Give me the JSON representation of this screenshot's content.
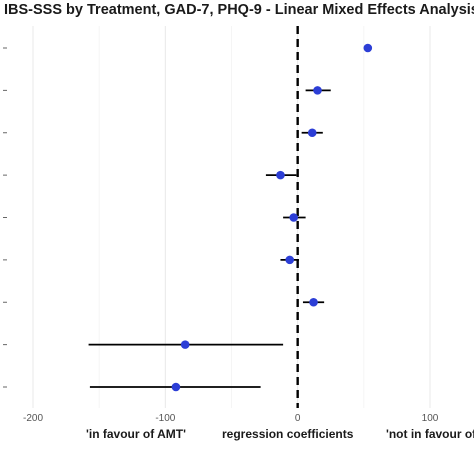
{
  "chart_data": {
    "type": "scatter",
    "title": "IBS-SSS by Treatment, GAD-7, PHQ-9 - Linear Mixed Effects Analysis",
    "xlabel_left": "'in favour of AMT'",
    "xlabel_center": "regression coefficients",
    "xlabel_right": "'not in favour of",
    "xlim": [
      -225,
      135
    ],
    "x_ticks": [
      -200,
      -100,
      0,
      100
    ],
    "x_tick_labels": [
      "-200",
      "-100",
      "0",
      "100"
    ],
    "reference_line_x": 0,
    "grid": true,
    "point_color": "#2c3ed6",
    "points": [
      {
        "estimate": 53,
        "lower": null,
        "upper": null
      },
      {
        "estimate": 15,
        "lower": 6,
        "upper": 25
      },
      {
        "estimate": 11,
        "lower": 3,
        "upper": 19
      },
      {
        "estimate": -13,
        "lower": -24,
        "upper": -1
      },
      {
        "estimate": -3,
        "lower": -11,
        "upper": 6
      },
      {
        "estimate": -6,
        "lower": -13,
        "upper": 1
      },
      {
        "estimate": 12,
        "lower": 4,
        "upper": 20
      },
      {
        "estimate": -85,
        "lower": -158,
        "upper": -11
      },
      {
        "estimate": -92,
        "lower": -157,
        "upper": -28
      }
    ]
  }
}
